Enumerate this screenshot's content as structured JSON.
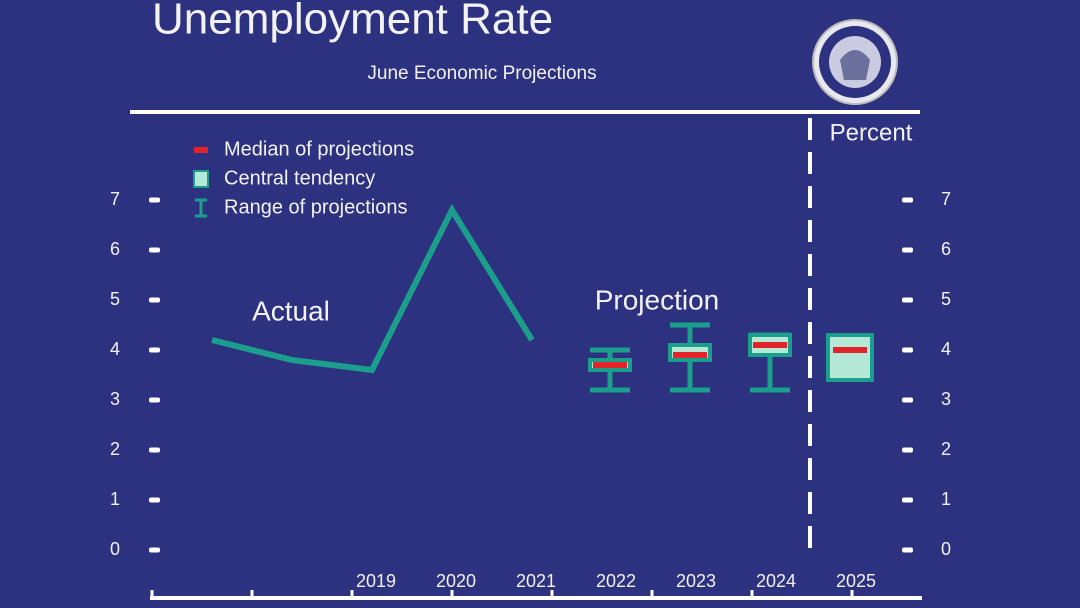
{
  "chart_data": {
    "type": "line",
    "title": "Unemployment Rate",
    "subtitle": "June Economic Projections",
    "ylabel": "Percent",
    "annotations": [
      "Projection"
    ],
    "categories": [
      null,
      null,
      "2019",
      "2020",
      "2021",
      "2022",
      "2023",
      "2024",
      "2025"
    ],
    "series": [
      {
        "name": "Actual",
        "color": "#1c9e8c",
        "values": [
          4.2,
          3.8,
          3.6,
          6.8,
          4.2,
          null,
          null,
          null,
          null
        ]
      }
    ],
    "median": {
      "name": "Median of projections",
      "color": "#e2232a",
      "values": [
        null,
        null,
        null,
        null,
        null,
        3.7,
        3.9,
        4.1,
        4.0
      ]
    },
    "central_tendency": {
      "name": "Central tendency",
      "color": "#b3e9d6",
      "low": [
        null,
        null,
        null,
        null,
        null,
        3.6,
        3.8,
        3.9,
        3.4
      ],
      "high": [
        null,
        null,
        null,
        null,
        null,
        3.8,
        4.1,
        4.3,
        4.3
      ]
    },
    "range": {
      "name": "Range of projections",
      "color": "#1c9e8c",
      "low": [
        null,
        null,
        null,
        null,
        null,
        3.2,
        3.2,
        3.2,
        null
      ],
      "high": [
        null,
        null,
        null,
        null,
        null,
        4.0,
        4.5,
        4.3,
        null
      ]
    },
    "ylim": [
      0,
      7
    ],
    "yticks": [
      0,
      1,
      2,
      3,
      4,
      5,
      6,
      7
    ]
  }
}
